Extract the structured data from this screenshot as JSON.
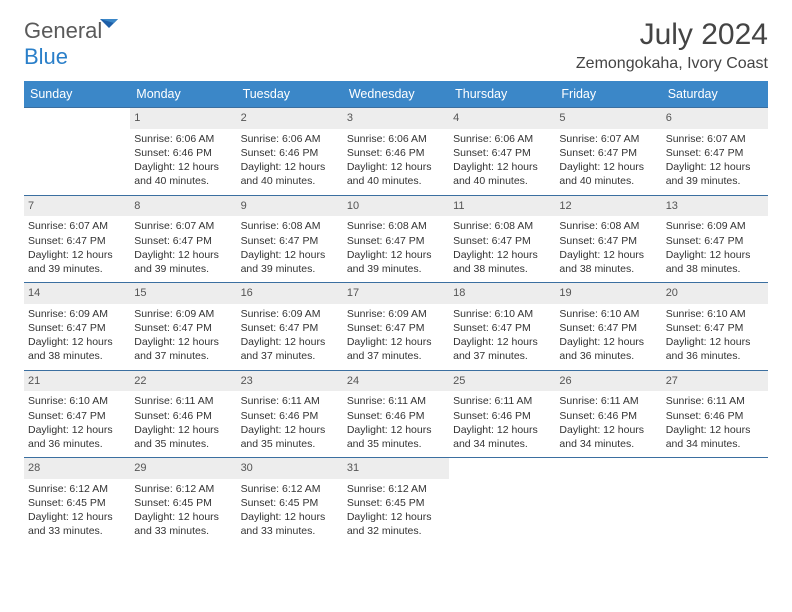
{
  "logo": {
    "text1": "General",
    "text2": "Blue"
  },
  "title": "July 2024",
  "location": "Zemongokaha, Ivory Coast",
  "colors": {
    "header_bg": "#3b87c8",
    "header_text": "#ffffff",
    "week_border": "#3b6fa0",
    "daynum_bg": "#ededed",
    "body_text": "#333333",
    "title_text": "#444444",
    "logo_gray": "#5a5a5a",
    "logo_blue": "#2a7fc9"
  },
  "weekdays": [
    "Sunday",
    "Monday",
    "Tuesday",
    "Wednesday",
    "Thursday",
    "Friday",
    "Saturday"
  ],
  "weeks": [
    [
      {
        "day": "",
        "sunrise": "",
        "sunset": "",
        "daylight": ""
      },
      {
        "day": "1",
        "sunrise": "Sunrise: 6:06 AM",
        "sunset": "Sunset: 6:46 PM",
        "daylight": "Daylight: 12 hours and 40 minutes."
      },
      {
        "day": "2",
        "sunrise": "Sunrise: 6:06 AM",
        "sunset": "Sunset: 6:46 PM",
        "daylight": "Daylight: 12 hours and 40 minutes."
      },
      {
        "day": "3",
        "sunrise": "Sunrise: 6:06 AM",
        "sunset": "Sunset: 6:46 PM",
        "daylight": "Daylight: 12 hours and 40 minutes."
      },
      {
        "day": "4",
        "sunrise": "Sunrise: 6:06 AM",
        "sunset": "Sunset: 6:47 PM",
        "daylight": "Daylight: 12 hours and 40 minutes."
      },
      {
        "day": "5",
        "sunrise": "Sunrise: 6:07 AM",
        "sunset": "Sunset: 6:47 PM",
        "daylight": "Daylight: 12 hours and 40 minutes."
      },
      {
        "day": "6",
        "sunrise": "Sunrise: 6:07 AM",
        "sunset": "Sunset: 6:47 PM",
        "daylight": "Daylight: 12 hours and 39 minutes."
      }
    ],
    [
      {
        "day": "7",
        "sunrise": "Sunrise: 6:07 AM",
        "sunset": "Sunset: 6:47 PM",
        "daylight": "Daylight: 12 hours and 39 minutes."
      },
      {
        "day": "8",
        "sunrise": "Sunrise: 6:07 AM",
        "sunset": "Sunset: 6:47 PM",
        "daylight": "Daylight: 12 hours and 39 minutes."
      },
      {
        "day": "9",
        "sunrise": "Sunrise: 6:08 AM",
        "sunset": "Sunset: 6:47 PM",
        "daylight": "Daylight: 12 hours and 39 minutes."
      },
      {
        "day": "10",
        "sunrise": "Sunrise: 6:08 AM",
        "sunset": "Sunset: 6:47 PM",
        "daylight": "Daylight: 12 hours and 39 minutes."
      },
      {
        "day": "11",
        "sunrise": "Sunrise: 6:08 AM",
        "sunset": "Sunset: 6:47 PM",
        "daylight": "Daylight: 12 hours and 38 minutes."
      },
      {
        "day": "12",
        "sunrise": "Sunrise: 6:08 AM",
        "sunset": "Sunset: 6:47 PM",
        "daylight": "Daylight: 12 hours and 38 minutes."
      },
      {
        "day": "13",
        "sunrise": "Sunrise: 6:09 AM",
        "sunset": "Sunset: 6:47 PM",
        "daylight": "Daylight: 12 hours and 38 minutes."
      }
    ],
    [
      {
        "day": "14",
        "sunrise": "Sunrise: 6:09 AM",
        "sunset": "Sunset: 6:47 PM",
        "daylight": "Daylight: 12 hours and 38 minutes."
      },
      {
        "day": "15",
        "sunrise": "Sunrise: 6:09 AM",
        "sunset": "Sunset: 6:47 PM",
        "daylight": "Daylight: 12 hours and 37 minutes."
      },
      {
        "day": "16",
        "sunrise": "Sunrise: 6:09 AM",
        "sunset": "Sunset: 6:47 PM",
        "daylight": "Daylight: 12 hours and 37 minutes."
      },
      {
        "day": "17",
        "sunrise": "Sunrise: 6:09 AM",
        "sunset": "Sunset: 6:47 PM",
        "daylight": "Daylight: 12 hours and 37 minutes."
      },
      {
        "day": "18",
        "sunrise": "Sunrise: 6:10 AM",
        "sunset": "Sunset: 6:47 PM",
        "daylight": "Daylight: 12 hours and 37 minutes."
      },
      {
        "day": "19",
        "sunrise": "Sunrise: 6:10 AM",
        "sunset": "Sunset: 6:47 PM",
        "daylight": "Daylight: 12 hours and 36 minutes."
      },
      {
        "day": "20",
        "sunrise": "Sunrise: 6:10 AM",
        "sunset": "Sunset: 6:47 PM",
        "daylight": "Daylight: 12 hours and 36 minutes."
      }
    ],
    [
      {
        "day": "21",
        "sunrise": "Sunrise: 6:10 AM",
        "sunset": "Sunset: 6:47 PM",
        "daylight": "Daylight: 12 hours and 36 minutes."
      },
      {
        "day": "22",
        "sunrise": "Sunrise: 6:11 AM",
        "sunset": "Sunset: 6:46 PM",
        "daylight": "Daylight: 12 hours and 35 minutes."
      },
      {
        "day": "23",
        "sunrise": "Sunrise: 6:11 AM",
        "sunset": "Sunset: 6:46 PM",
        "daylight": "Daylight: 12 hours and 35 minutes."
      },
      {
        "day": "24",
        "sunrise": "Sunrise: 6:11 AM",
        "sunset": "Sunset: 6:46 PM",
        "daylight": "Daylight: 12 hours and 35 minutes."
      },
      {
        "day": "25",
        "sunrise": "Sunrise: 6:11 AM",
        "sunset": "Sunset: 6:46 PM",
        "daylight": "Daylight: 12 hours and 34 minutes."
      },
      {
        "day": "26",
        "sunrise": "Sunrise: 6:11 AM",
        "sunset": "Sunset: 6:46 PM",
        "daylight": "Daylight: 12 hours and 34 minutes."
      },
      {
        "day": "27",
        "sunrise": "Sunrise: 6:11 AM",
        "sunset": "Sunset: 6:46 PM",
        "daylight": "Daylight: 12 hours and 34 minutes."
      }
    ],
    [
      {
        "day": "28",
        "sunrise": "Sunrise: 6:12 AM",
        "sunset": "Sunset: 6:45 PM",
        "daylight": "Daylight: 12 hours and 33 minutes."
      },
      {
        "day": "29",
        "sunrise": "Sunrise: 6:12 AM",
        "sunset": "Sunset: 6:45 PM",
        "daylight": "Daylight: 12 hours and 33 minutes."
      },
      {
        "day": "30",
        "sunrise": "Sunrise: 6:12 AM",
        "sunset": "Sunset: 6:45 PM",
        "daylight": "Daylight: 12 hours and 33 minutes."
      },
      {
        "day": "31",
        "sunrise": "Sunrise: 6:12 AM",
        "sunset": "Sunset: 6:45 PM",
        "daylight": "Daylight: 12 hours and 32 minutes."
      },
      {
        "day": "",
        "sunrise": "",
        "sunset": "",
        "daylight": ""
      },
      {
        "day": "",
        "sunrise": "",
        "sunset": "",
        "daylight": ""
      },
      {
        "day": "",
        "sunrise": "",
        "sunset": "",
        "daylight": ""
      }
    ]
  ]
}
